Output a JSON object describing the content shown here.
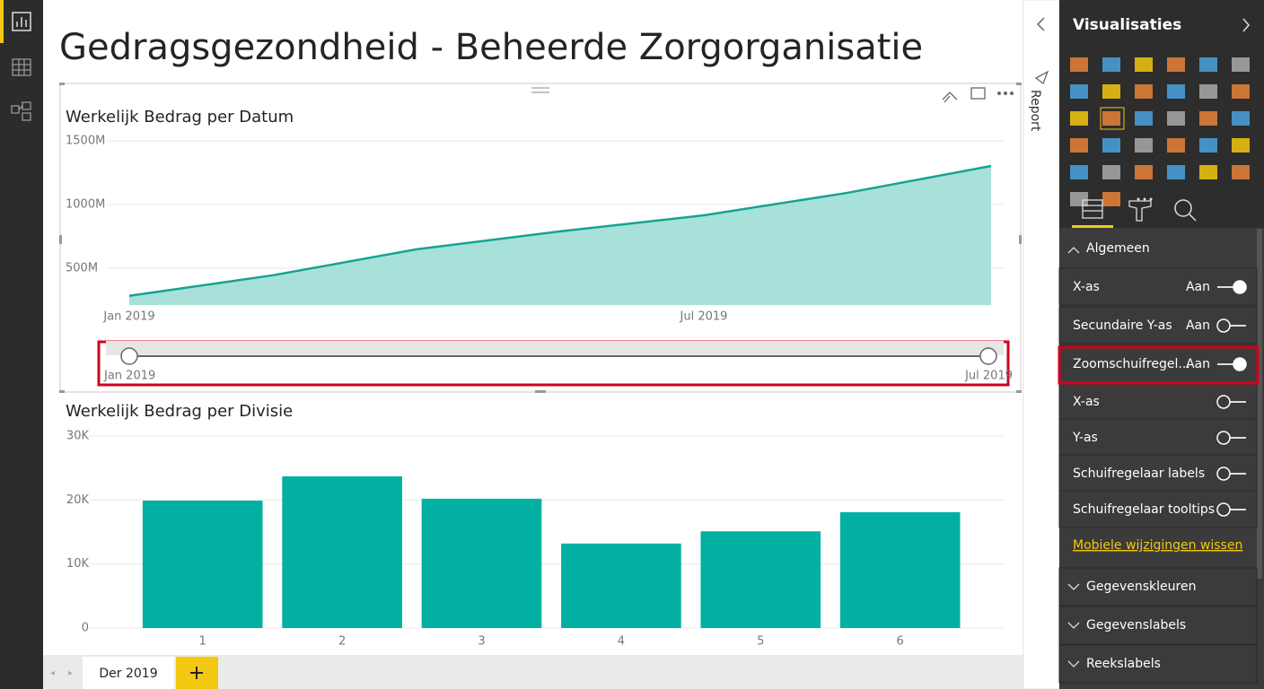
{
  "report_title": "Gedragsgezondheid - Beheerde Zorgorganisatie",
  "side_tab": "Report",
  "chart_data": [
    {
      "type": "area",
      "title": "Werkelijk Bedrag per Datum",
      "categories": [
        "Jan 2019",
        null,
        null,
        null,
        "Jul 2019",
        null,
        null
      ],
      "values": [
        282,
        444,
        648,
        789,
        915,
        1092,
        1303
      ],
      "color": "#16a392",
      "fill": "#a8e1d9",
      "ylim": [
        210,
        1550
      ],
      "yticks": [
        {
          "value": 500,
          "label": "500M"
        },
        {
          "value": 1000,
          "label": "1000M"
        },
        {
          "value": 1500,
          "label": "1500M"
        }
      ],
      "grid": true,
      "zoom_slider": {
        "start_label": "Jan 2019",
        "end_label": "Jul 2019"
      }
    },
    {
      "type": "bar",
      "title": "Werkelijk Bedrag per Divisie",
      "categories": [
        "1",
        "2",
        "3",
        "4",
        "5",
        "6"
      ],
      "values": [
        19.9,
        23.7,
        20.2,
        13.2,
        15.1,
        18.1
      ],
      "color": "#01b0a1",
      "ylim": [
        0,
        30
      ],
      "yticks": [
        0,
        {
          "value": 10,
          "label": "10K"
        },
        {
          "value": 20,
          "label": "20K"
        },
        {
          "value": 30,
          "label": "30K"
        }
      ],
      "grid": true
    }
  ],
  "format_pane": {
    "title": "Visualisaties",
    "expanded_section": "Algemeen",
    "settings": [
      {
        "label": "X-as",
        "state": "Aan",
        "on": true
      },
      {
        "label": "Secundaire Y-as",
        "state": "Aan",
        "on": false
      },
      {
        "label": "Zoomschuifregel...",
        "state": "Aan",
        "on": true
      },
      {
        "label": "X-as",
        "on": false
      },
      {
        "label": "Y-as",
        "on": false
      },
      {
        "label": "Schuifregelaar labels",
        "on": false
      },
      {
        "label": "Schuifregelaar tooltips",
        "on": false
      }
    ],
    "link": "Mobiele wijzigingen wissen",
    "collapsed_sections": [
      "Gegevenskleuren",
      "Gegevenslabels",
      "Reekslabels"
    ]
  },
  "page_tabs": [
    "Der 2019"
  ]
}
